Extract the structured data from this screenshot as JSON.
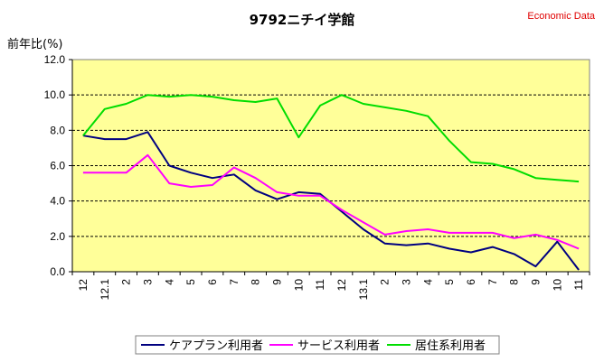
{
  "title": "9792ニチイ学館",
  "source": "Economic Data",
  "chart_data": {
    "type": "line",
    "title": "9792ニチイ学館",
    "ylabel": "前年比(%)",
    "xlabel": "",
    "ylim": [
      0,
      12
    ],
    "yticks": [
      "0.0",
      "2.0",
      "4.0",
      "6.0",
      "8.0",
      "10.0",
      "12.0"
    ],
    "grid": true,
    "legend_position": "bottom",
    "plot_bg": "#ffff99",
    "categories": [
      "12",
      "12.1",
      "2",
      "3",
      "4",
      "5",
      "6",
      "7",
      "8",
      "9",
      "10",
      "11",
      "12",
      "13.1",
      "2",
      "3",
      "4",
      "5",
      "6",
      "7",
      "8",
      "9",
      "10",
      "11"
    ],
    "series": [
      {
        "name": "ケアプラン利用者",
        "color": "#000080",
        "values": [
          7.7,
          7.5,
          7.5,
          7.9,
          6.0,
          5.6,
          5.3,
          5.5,
          4.6,
          4.1,
          4.5,
          4.4,
          3.4,
          2.4,
          1.6,
          1.5,
          1.6,
          1.3,
          1.1,
          1.4,
          1.0,
          0.3,
          1.7,
          0.1
        ]
      },
      {
        "name": "サービス利用者",
        "color": "#ff00ff",
        "values": [
          5.6,
          5.6,
          5.6,
          6.6,
          5.0,
          4.8,
          4.9,
          5.9,
          5.3,
          4.5,
          4.3,
          4.3,
          3.5,
          2.8,
          2.1,
          2.3,
          2.4,
          2.2,
          2.2,
          2.2,
          1.9,
          2.1,
          1.8,
          1.3
        ]
      },
      {
        "name": "居住系利用者",
        "color": "#00dd00",
        "values": [
          7.7,
          9.2,
          9.5,
          10.0,
          9.9,
          10.0,
          9.9,
          9.7,
          9.6,
          9.8,
          7.6,
          9.4,
          10.0,
          9.5,
          9.3,
          9.1,
          8.8,
          7.4,
          6.2,
          6.1,
          5.8,
          5.3,
          5.2,
          5.1
        ]
      }
    ]
  }
}
